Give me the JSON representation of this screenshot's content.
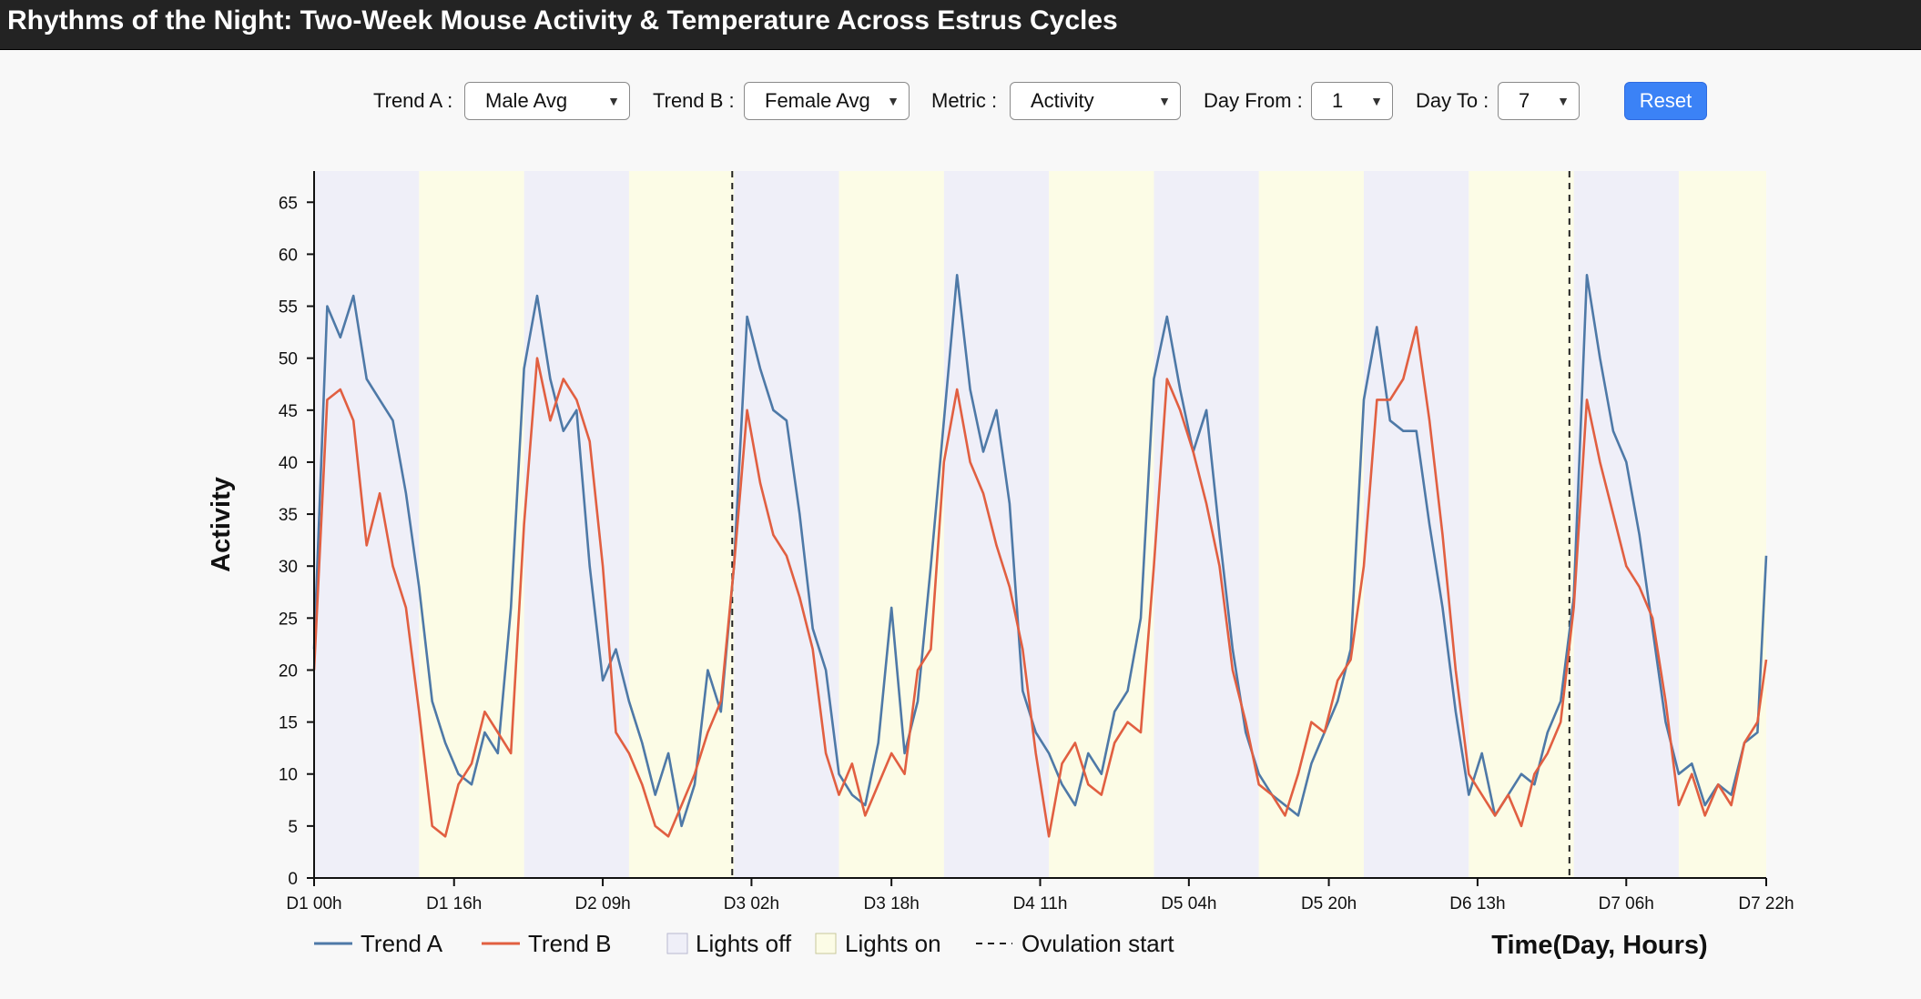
{
  "title": "Rhythms of the Night: Two-Week Mouse Activity & Temperature Across Estrus Cycles",
  "controls": {
    "trend_a_label": "Trend A :",
    "trend_a_value": "Male Avg",
    "trend_b_label": "Trend B :",
    "trend_b_value": "Female Avg",
    "metric_label": "Metric :",
    "metric_value": "Activity",
    "day_from_label": "Day From :",
    "day_from_value": "1",
    "day_to_label": "Day To :",
    "day_to_value": "7",
    "reset_label": "Reset"
  },
  "icons": {
    "dropdown": "chevron-down-icon"
  },
  "colors": {
    "trend_a": "#4e79a7",
    "trend_b": "#e15f41",
    "lights_off": "#efeff8",
    "lights_on": "#fcfce6",
    "ovulation": "#222222",
    "reset_button": "#3b82f6"
  },
  "chart_data": {
    "type": "line",
    "xlabel": "Time(Day, Hours)",
    "ylabel": "Activity",
    "x_unit": "hours since D1 00h",
    "xlim": [
      0,
      166
    ],
    "ylim": [
      0,
      68
    ],
    "yticks": [
      0,
      5,
      10,
      15,
      20,
      25,
      30,
      35,
      40,
      45,
      50,
      55,
      60,
      65
    ],
    "xticks": [
      {
        "hour": 0,
        "label": "D1 00h"
      },
      {
        "hour": 16,
        "label": "D1 16h"
      },
      {
        "hour": 33,
        "label": "D2 09h"
      },
      {
        "hour": 50,
        "label": "D3 02h"
      },
      {
        "hour": 66,
        "label": "D3 18h"
      },
      {
        "hour": 83,
        "label": "D4 11h"
      },
      {
        "hour": 100,
        "label": "D5 04h"
      },
      {
        "hour": 116,
        "label": "D5 20h"
      },
      {
        "hour": 133,
        "label": "D6 13h"
      },
      {
        "hour": 150,
        "label": "D7 06h"
      },
      {
        "hour": 166,
        "label": "D7 22h"
      }
    ],
    "lights_off_hours": [
      [
        0,
        12
      ],
      [
        24,
        36
      ],
      [
        48,
        60
      ],
      [
        72,
        84
      ],
      [
        96,
        108
      ],
      [
        120,
        132
      ],
      [
        144,
        156
      ]
    ],
    "lights_on_hours": [
      [
        12,
        24
      ],
      [
        36,
        48
      ],
      [
        60,
        72
      ],
      [
        84,
        96
      ],
      [
        108,
        120
      ],
      [
        132,
        144
      ],
      [
        156,
        166
      ]
    ],
    "ovulation_hours": [
      47.8,
      143.5
    ],
    "series": [
      {
        "name": "Trend A",
        "x": [
          0,
          1.5,
          3,
          4.5,
          6,
          7.5,
          9,
          10.5,
          12,
          13.5,
          15,
          16.5,
          18,
          19.5,
          21,
          22.5,
          24,
          25.5,
          27,
          28.5,
          30,
          31.5,
          33,
          34.5,
          36,
          37.5,
          39,
          40.5,
          42,
          43.5,
          45,
          46.5,
          48,
          49.5,
          51,
          52.5,
          54,
          55.5,
          57,
          58.5,
          60,
          61.5,
          63,
          64.5,
          66,
          67.5,
          69,
          70.5,
          72,
          73.5,
          75,
          76.5,
          78,
          79.5,
          81,
          82.5,
          84,
          85.5,
          87,
          88.5,
          90,
          91.5,
          93,
          94.5,
          96,
          97.5,
          99,
          100.5,
          102,
          103.5,
          105,
          106.5,
          108,
          109.5,
          111,
          112.5,
          114,
          115.5,
          117,
          118.5,
          120,
          121.5,
          123,
          124.5,
          126,
          127.5,
          129,
          130.5,
          132,
          133.5,
          135,
          136.5,
          138,
          139.5,
          141,
          142.5,
          144,
          145.5,
          147,
          148.5,
          150,
          151.5,
          153,
          154.5,
          156,
          157.5,
          159,
          160.5,
          162,
          163.5,
          165,
          166
        ],
        "values": [
          22,
          55,
          52,
          56,
          48,
          46,
          44,
          37,
          28,
          17,
          13,
          10,
          9,
          14,
          12,
          26,
          49,
          56,
          48,
          43,
          45,
          30,
          19,
          22,
          17,
          13,
          8,
          12,
          5,
          9,
          20,
          16,
          30,
          54,
          49,
          45,
          44,
          35,
          24,
          20,
          10,
          8,
          7,
          13,
          26,
          12,
          17,
          30,
          44,
          58,
          47,
          41,
          45,
          36,
          18,
          14,
          12,
          9,
          7,
          12,
          10,
          16,
          18,
          25,
          48,
          54,
          47,
          41,
          45,
          33,
          22,
          14,
          10,
          8,
          7,
          6,
          11,
          14,
          17,
          22,
          46,
          53,
          44,
          43,
          43,
          34,
          26,
          16,
          8,
          12,
          6,
          8,
          10,
          9,
          14,
          17,
          27,
          58,
          50,
          43,
          40,
          33,
          24,
          15,
          10,
          11,
          7,
          9,
          8,
          13,
          14,
          31
        ]
      },
      {
        "name": "Trend B",
        "x": [
          0,
          1.5,
          3,
          4.5,
          6,
          7.5,
          9,
          10.5,
          12,
          13.5,
          15,
          16.5,
          18,
          19.5,
          21,
          22.5,
          24,
          25.5,
          27,
          28.5,
          30,
          31.5,
          33,
          34.5,
          36,
          37.5,
          39,
          40.5,
          42,
          43.5,
          45,
          46.5,
          48,
          49.5,
          51,
          52.5,
          54,
          55.5,
          57,
          58.5,
          60,
          61.5,
          63,
          64.5,
          66,
          67.5,
          69,
          70.5,
          72,
          73.5,
          75,
          76.5,
          78,
          79.5,
          81,
          82.5,
          84,
          85.5,
          87,
          88.5,
          90,
          91.5,
          93,
          94.5,
          96,
          97.5,
          99,
          100.5,
          102,
          103.5,
          105,
          106.5,
          108,
          109.5,
          111,
          112.5,
          114,
          115.5,
          117,
          118.5,
          120,
          121.5,
          123,
          124.5,
          126,
          127.5,
          129,
          130.5,
          132,
          133.5,
          135,
          136.5,
          138,
          139.5,
          141,
          142.5,
          144,
          145.5,
          147,
          148.5,
          150,
          151.5,
          153,
          154.5,
          156,
          157.5,
          159,
          160.5,
          162,
          163.5,
          165,
          166
        ],
        "values": [
          20,
          46,
          47,
          44,
          32,
          37,
          30,
          26,
          16,
          5,
          4,
          9,
          11,
          16,
          14,
          12,
          34,
          50,
          44,
          48,
          46,
          42,
          30,
          14,
          12,
          9,
          5,
          4,
          7,
          10,
          14,
          17,
          30,
          45,
          38,
          33,
          31,
          27,
          22,
          12,
          8,
          11,
          6,
          9,
          12,
          10,
          20,
          22,
          40,
          47,
          40,
          37,
          32,
          28,
          22,
          12,
          4,
          11,
          13,
          9,
          8,
          13,
          15,
          14,
          30,
          48,
          45,
          41,
          36,
          30,
          20,
          15,
          9,
          8,
          6,
          10,
          15,
          14,
          19,
          21,
          30,
          46,
          46,
          48,
          53,
          44,
          33,
          20,
          10,
          8,
          6,
          8,
          5,
          10,
          12,
          15,
          26,
          46,
          40,
          35,
          30,
          28,
          25,
          17,
          7,
          10,
          6,
          9,
          7,
          13,
          15,
          21
        ]
      }
    ],
    "legend": {
      "placement": "bottom-left",
      "entries": [
        "Trend A",
        "Trend B",
        "Lights off",
        "Lights on",
        "Ovulation start"
      ]
    }
  }
}
